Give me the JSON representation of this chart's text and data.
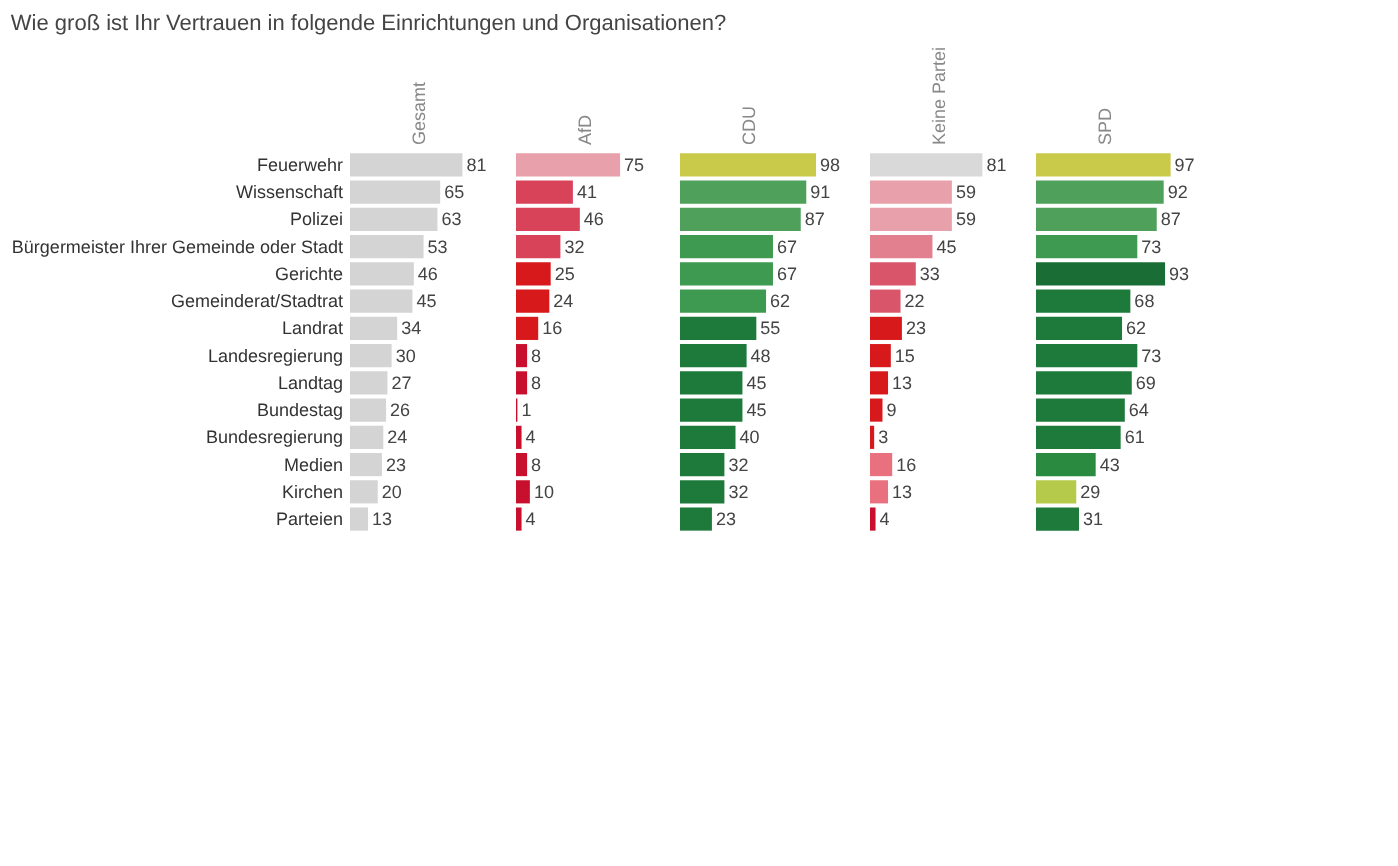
{
  "chart_data": [
    {
      "type": "bar",
      "orientation": "horizontal",
      "title": "Wie groß ist Ihr Vertrauen in folgende Einrichtungen und Organisationen?",
      "x2label": "Gesamt",
      "categories": [
        "Feuerwehr",
        "Wissenschaft",
        "Polizei",
        "Bürgermeister Ihrer Gemeinde oder Stadt",
        "Gerichte",
        "Gemeinderat/Stadtrat",
        "Landrat",
        "Landesregierung",
        "Landtag",
        "Bundestag",
        "Bundesregierung",
        "Medien",
        "Kirchen",
        "Parteien"
      ],
      "values": [
        81,
        65,
        63,
        53,
        46,
        45,
        34,
        30,
        27,
        26,
        24,
        23,
        20,
        13
      ],
      "colors": [
        "#d4d4d4",
        "#d4d4d4",
        "#d4d4d4",
        "#d4d4d4",
        "#d4d4d4",
        "#d4d4d4",
        "#d4d4d4",
        "#d4d4d4",
        "#d4d4d4",
        "#d4d4d4",
        "#d4d4d4",
        "#d4d4d4",
        "#d4d4d4",
        "#d4d4d4"
      ],
      "data_labels": true,
      "grid": false,
      "tick_labels": "y"
    },
    {
      "type": "bar",
      "orientation": "horizontal",
      "x2label": "AfD",
      "categories": [
        "Feuerwehr",
        "Wissenschaft",
        "Polizei",
        "Bürgermeister Ihrer Gemeinde oder Stadt",
        "Gerichte",
        "Gemeinderat/Stadtrat",
        "Landrat",
        "Landesregierung",
        "Landtag",
        "Bundestag",
        "Bundesregierung",
        "Medien",
        "Kirchen",
        "Parteien"
      ],
      "values": [
        75,
        41,
        46,
        32,
        25,
        24,
        16,
        8,
        8,
        1,
        4,
        8,
        10,
        4
      ],
      "colors": [
        "#e8a0aa",
        "#d9435a",
        "#d9435a",
        "#d9435a",
        "#d7191c",
        "#d7191c",
        "#d7191c",
        "#c8102e",
        "#c8102e",
        "#c8102e",
        "#c8102e",
        "#c8102e",
        "#c8102e",
        "#c8102e"
      ],
      "data_labels": true,
      "grid": false,
      "tick_labels": false
    },
    {
      "type": "bar",
      "orientation": "horizontal",
      "x2label": "CDU",
      "categories": [
        "Feuerwehr",
        "Wissenschaft",
        "Polizei",
        "Bürgermeister Ihrer Gemeinde oder Stadt",
        "Gerichte",
        "Gemeinderat/Stadtrat",
        "Landrat",
        "Landesregierung",
        "Landtag",
        "Bundestag",
        "Bundesregierung",
        "Medien",
        "Kirchen",
        "Parteien"
      ],
      "values": [
        98,
        91,
        87,
        67,
        67,
        62,
        55,
        48,
        45,
        45,
        40,
        32,
        32,
        23
      ],
      "colors": [
        "#c9c94a",
        "#4ea05a",
        "#4ea05a",
        "#3e9a50",
        "#3e9a50",
        "#3e9a50",
        "#1e7a3a",
        "#1e7a3a",
        "#1e7a3a",
        "#1e7a3a",
        "#1e7a3a",
        "#1e7a3a",
        "#1e7a3a",
        "#1e7a3a"
      ],
      "data_labels": true,
      "grid": false,
      "tick_labels": false
    },
    {
      "type": "bar",
      "orientation": "horizontal",
      "x2label": "Keine Partei",
      "categories": [
        "Feuerwehr",
        "Wissenschaft",
        "Polizei",
        "Bürgermeister Ihrer Gemeinde oder Stadt",
        "Gerichte",
        "Gemeinderat/Stadtrat",
        "Landrat",
        "Landesregierung",
        "Landtag",
        "Bundestag",
        "Bundesregierung",
        "Medien",
        "Kirchen",
        "Parteien"
      ],
      "values": [
        81,
        59,
        59,
        45,
        33,
        22,
        23,
        15,
        13,
        9,
        3,
        16,
        13,
        4
      ],
      "colors": [
        "#d9d9d9",
        "#e8a0aa",
        "#e8a0aa",
        "#e38090",
        "#d9566a",
        "#d9566a",
        "#d7191c",
        "#d7191c",
        "#d7191c",
        "#d7191c",
        "#d7191c",
        "#e8707f",
        "#e8707f",
        "#c8102e"
      ],
      "data_labels": true,
      "grid": false,
      "tick_labels": false
    },
    {
      "type": "bar",
      "orientation": "horizontal",
      "x2label": "SPD",
      "categories": [
        "Feuerwehr",
        "Wissenschaft",
        "Polizei",
        "Bürgermeister Ihrer Gemeinde oder Stadt",
        "Gerichte",
        "Gemeinderat/Stadtrat",
        "Landrat",
        "Landesregierung",
        "Landtag",
        "Bundestag",
        "Bundesregierung",
        "Medien",
        "Kirchen",
        "Parteien"
      ],
      "values": [
        97,
        92,
        87,
        73,
        93,
        68,
        62,
        73,
        69,
        64,
        61,
        43,
        29,
        31
      ],
      "colors": [
        "#c9c94a",
        "#4ea05a",
        "#4ea05a",
        "#3e9a50",
        "#1a6e35",
        "#1e7a3a",
        "#1e7a3a",
        "#1e7a3a",
        "#1e7a3a",
        "#1e7a3a",
        "#1e7a3a",
        "#2a8a40",
        "#b5c94a",
        "#1e7a3a"
      ],
      "data_labels": true,
      "grid": false,
      "tick_labels": false
    }
  ]
}
